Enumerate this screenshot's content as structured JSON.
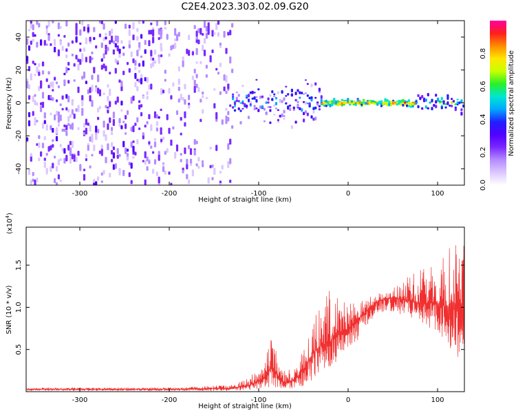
{
  "title": "C2E4.2023.303.02.09.G20",
  "colors": {
    "snr_line": "#f03030",
    "colormap": [
      "#ffffff",
      "#dcc8ff",
      "#b48cff",
      "#7a28ff",
      "#5000ff",
      "#2020ff",
      "#00a8ff",
      "#00e6d2",
      "#28f028",
      "#c8ff00",
      "#ffe600",
      "#ff8c00",
      "#ff1e1e",
      "#ff00a0"
    ]
  },
  "chart_data": [
    {
      "type": "heatmap",
      "title": "C2E4.2023.303.02.09.G20",
      "xlabel": "Height of straight line (km)",
      "ylabel": "Frequency (Hz)",
      "xlim": [
        -360,
        130
      ],
      "ylim": [
        -50,
        50
      ],
      "xticks": [
        -300,
        -200,
        -100,
        0,
        100
      ],
      "yticks": [
        -40,
        -20,
        0,
        20,
        40
      ],
      "colorbar": {
        "label": "Normalized spectral amplitude",
        "range": [
          0.0,
          1.0
        ],
        "ticks": [
          "0.0",
          "0.2",
          "0.4",
          "0.6",
          "0.8"
        ],
        "tick_values": [
          0.0,
          0.2,
          0.4,
          0.6,
          0.8
        ]
      },
      "regions": [
        {
          "x": [
            -360,
            -210
          ],
          "freq_spread": 50,
          "amplitude": [
            0.05,
            0.3
          ],
          "density": "high"
        },
        {
          "x": [
            -210,
            -130
          ],
          "freq_spread": 50,
          "amplitude": [
            0.03,
            0.25
          ],
          "density": "medium"
        },
        {
          "x": [
            -130,
            -30
          ],
          "freq_spread": 12,
          "amplitude": [
            0.1,
            0.55
          ],
          "density": "high"
        },
        {
          "x": [
            -30,
            75
          ],
          "freq_spread": 2,
          "amplitude": [
            0.5,
            0.95
          ],
          "density": "narrow"
        },
        {
          "x": [
            75,
            130
          ],
          "freq_spread": 5,
          "amplitude": [
            0.3,
            0.7
          ],
          "density": "medium"
        }
      ]
    },
    {
      "type": "line",
      "xlabel": "Height of straight line (km)",
      "ylabel": "SNR (10 * v/v)",
      "scale_label": "(x10",
      "scale_exp": "4",
      "scale_close": ")",
      "xlim": [
        -360,
        130
      ],
      "ylim": [
        0,
        1.95
      ],
      "xticks": [
        -300,
        -200,
        -100,
        0,
        100
      ],
      "yticks": [
        0.5,
        1.0,
        1.5
      ],
      "ytick_labels": [
        "0.5",
        "1.0",
        "1.5"
      ],
      "series": [
        {
          "x": [
            -360,
            -300,
            -200,
            -130,
            -110,
            -95,
            -85,
            -80,
            -70,
            -60,
            -50,
            -40,
            -30,
            -20,
            -10,
            0,
            10,
            20,
            30,
            40,
            50,
            60,
            70,
            80,
            90,
            100,
            110,
            120,
            130
          ],
          "y": [
            0.03,
            0.03,
            0.03,
            0.04,
            0.08,
            0.15,
            0.3,
            0.2,
            0.1,
            0.15,
            0.25,
            0.45,
            0.55,
            0.6,
            0.7,
            0.75,
            0.85,
            0.95,
            1.05,
            1.1,
            1.12,
            1.1,
            1.08,
            1.05,
            1.05,
            1.05,
            1.0,
            1.05,
            1.05
          ],
          "ymin": [
            0.01,
            0.01,
            0.01,
            0.01,
            0.02,
            0.04,
            0.06,
            0.04,
            0.03,
            0.04,
            0.06,
            0.12,
            0.2,
            0.25,
            0.4,
            0.5,
            0.6,
            0.75,
            0.9,
            0.95,
            0.95,
            0.9,
            0.85,
            0.8,
            0.75,
            0.7,
            0.6,
            0.4,
            0.3
          ],
          "ymax": [
            0.05,
            0.05,
            0.05,
            0.08,
            0.18,
            0.35,
            0.7,
            0.45,
            0.25,
            0.35,
            0.55,
            0.9,
            1.0,
            1.25,
            1.1,
            1.1,
            1.05,
            1.1,
            1.15,
            1.2,
            1.25,
            1.3,
            1.4,
            1.45,
            1.5,
            1.55,
            1.65,
            1.9,
            1.8
          ]
        }
      ]
    }
  ]
}
